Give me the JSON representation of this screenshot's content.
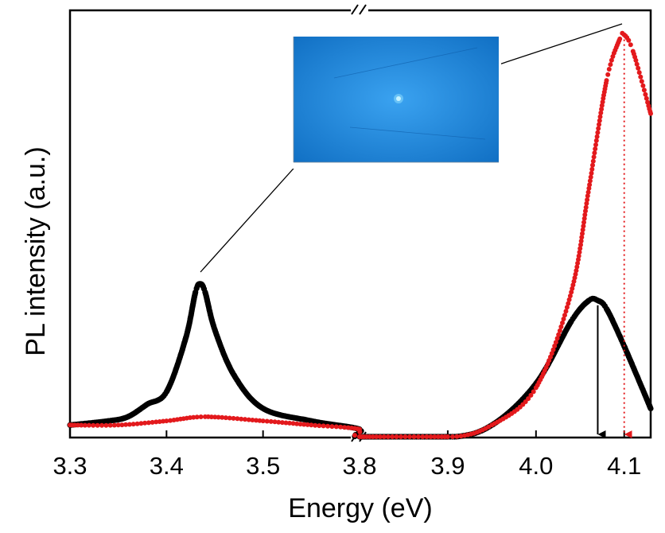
{
  "chart_data": {
    "type": "scatter",
    "xlabel": "Energy (eV)",
    "ylabel": "PL intensity (a.u.)",
    "x_axis_broken": true,
    "x_segments": [
      {
        "range": [
          3.3,
          3.6
        ],
        "ticks": [
          {
            "value": 3.3,
            "label": "3.3"
          },
          {
            "value": 3.4,
            "label": "3.4"
          },
          {
            "value": 3.5,
            "label": "3.5"
          }
        ]
      },
      {
        "range": [
          3.8,
          4.13
        ],
        "ticks": [
          {
            "value": 3.8,
            "label": "3.8"
          },
          {
            "value": 3.9,
            "label": "3.9"
          },
          {
            "value": 4.0,
            "label": "4.0"
          },
          {
            "value": 4.1,
            "label": "4.1"
          }
        ]
      }
    ],
    "ylim": [
      0,
      1.0
    ],
    "series": [
      {
        "color": "#000000",
        "x": [
          3.3,
          3.34,
          3.36,
          3.38,
          3.4,
          3.42,
          3.43,
          3.435,
          3.44,
          3.45,
          3.47,
          3.5,
          3.55,
          3.6,
          3.8,
          3.9,
          3.95,
          4.0,
          4.04,
          4.06,
          4.07,
          4.08,
          4.1,
          4.13
        ],
        "y": [
          0.03,
          0.04,
          0.05,
          0.08,
          0.11,
          0.24,
          0.35,
          0.37,
          0.35,
          0.26,
          0.15,
          0.07,
          0.04,
          0.02,
          0.0,
          0.0,
          0.03,
          0.13,
          0.28,
          0.33,
          0.33,
          0.31,
          0.22,
          0.07
        ]
      },
      {
        "color": "#e3191c",
        "x": [
          3.3,
          3.35,
          3.4,
          3.44,
          3.5,
          3.55,
          3.6,
          3.8,
          3.9,
          3.95,
          4.0,
          4.04,
          4.06,
          4.08,
          4.095,
          4.1,
          4.11,
          4.13
        ],
        "y": [
          0.03,
          0.03,
          0.04,
          0.05,
          0.04,
          0.03,
          0.02,
          0.0,
          0.0,
          0.03,
          0.12,
          0.35,
          0.6,
          0.86,
          0.96,
          0.97,
          0.93,
          0.78
        ]
      }
    ],
    "annotations": [
      {
        "type": "arrow-down",
        "x": 4.07,
        "color": "#000000"
      },
      {
        "type": "arrow-down",
        "x": 4.1,
        "color": "#e3191c"
      }
    ],
    "inset": {
      "background": "#1c86dc"
    }
  }
}
